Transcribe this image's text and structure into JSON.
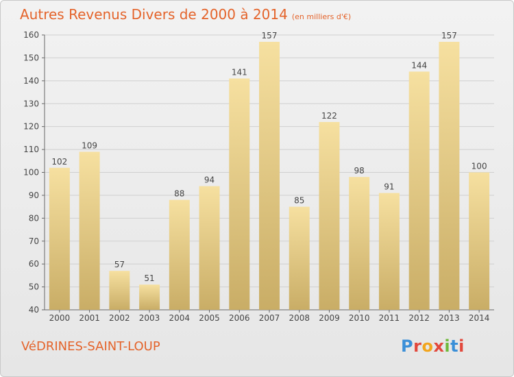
{
  "header": {
    "title": "Autres Revenus Divers de 2000 à 2014",
    "subtitle": "(en milliers d'€)"
  },
  "footer": {
    "commune": "VéDRINES-SAINT-LOUP",
    "logo": "Proxiti",
    "logo_colors": [
      "#3a8fd8",
      "#e2483c",
      "#f2a51d",
      "#e2483c",
      "#6fb93a",
      "#3a8fd8",
      "#e2483c"
    ]
  },
  "chart_data": {
    "type": "bar",
    "categories": [
      "2000",
      "2001",
      "2002",
      "2003",
      "2004",
      "2005",
      "2006",
      "2007",
      "2008",
      "2009",
      "2010",
      "2011",
      "2012",
      "2013",
      "2014"
    ],
    "values": [
      102,
      109,
      57,
      51,
      88,
      94,
      141,
      157,
      85,
      122,
      98,
      91,
      144,
      157,
      100
    ],
    "ylim": [
      40,
      160
    ],
    "yticks": [
      40,
      50,
      60,
      70,
      80,
      90,
      100,
      110,
      120,
      130,
      140,
      150,
      160
    ],
    "grid": true,
    "bar_color_top": "#f6e0a0",
    "bar_color_bottom": "#c9ad66"
  }
}
